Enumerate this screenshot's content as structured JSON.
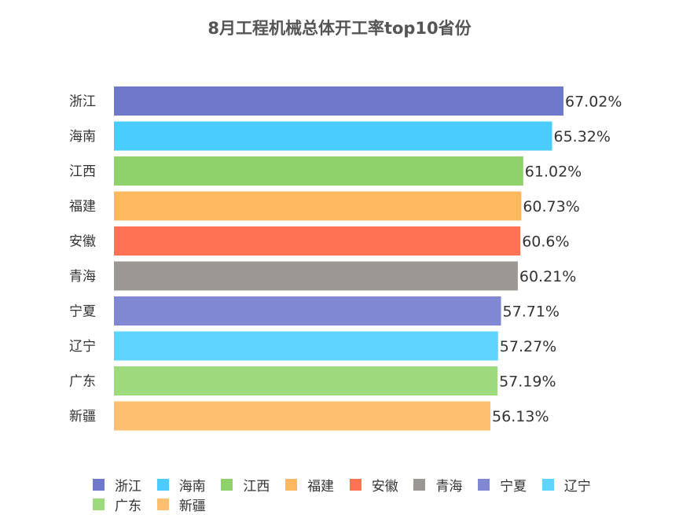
{
  "chart_data": {
    "type": "bar",
    "orientation": "horizontal",
    "title": "8月工程机械总体开工率top10省份",
    "categories": [
      "浙江",
      "海南",
      "江西",
      "福建",
      "安徽",
      "青海",
      "宁夏",
      "辽宁",
      "广东",
      "新疆"
    ],
    "values": [
      67.02,
      65.32,
      61.02,
      60.73,
      60.6,
      60.21,
      57.71,
      57.27,
      57.19,
      56.13
    ],
    "data_labels": [
      "67.02%",
      "65.32%",
      "61.02%",
      "60.73%",
      "60.6%",
      "60.21%",
      "57.71%",
      "57.27%",
      "57.19%",
      "56.13%"
    ],
    "colors": [
      "#7079C9",
      "#4BCCFF",
      "#8FD16B",
      "#FFB760",
      "#FF7354",
      "#9B9893",
      "#8088D3",
      "#5FD4FF",
      "#9DD97D",
      "#FFBF70"
    ],
    "xlim": [
      0,
      67.02
    ],
    "grid": false,
    "legend": "bottom"
  }
}
